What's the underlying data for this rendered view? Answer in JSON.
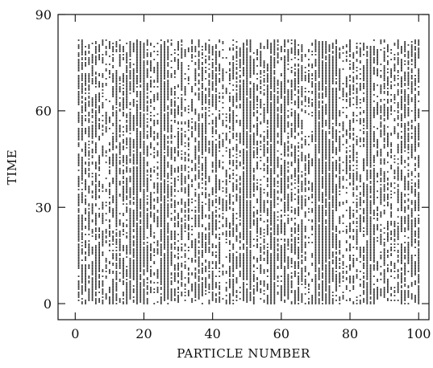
{
  "chart_data": {
    "type": "scatter",
    "title": "",
    "xlabel": "PARTICLE NUMBER",
    "ylabel": "TIME",
    "xlim": [
      -5,
      103
    ],
    "ylim": [
      -5,
      90
    ],
    "xticks": [
      0,
      20,
      40,
      60,
      80,
      100
    ],
    "yticks": [
      0,
      30,
      60,
      90
    ],
    "xtick_labels": [
      "0",
      "20",
      "40",
      "60",
      "80",
      "100"
    ],
    "ytick_labels": [
      "0",
      "30",
      "60",
      "90"
    ],
    "grid": false,
    "legend": "none",
    "marker_color": "#1a1a1a",
    "particle_range": [
      1,
      100
    ],
    "time_range": [
      0,
      82
    ],
    "dense_columns": [
      18,
      19,
      20,
      25,
      26,
      49,
      50,
      51,
      57,
      58,
      70,
      71,
      72,
      73,
      74,
      85,
      86
    ],
    "description_of_series": "each dot marks an event of one particle (x) at one time step (y)"
  }
}
